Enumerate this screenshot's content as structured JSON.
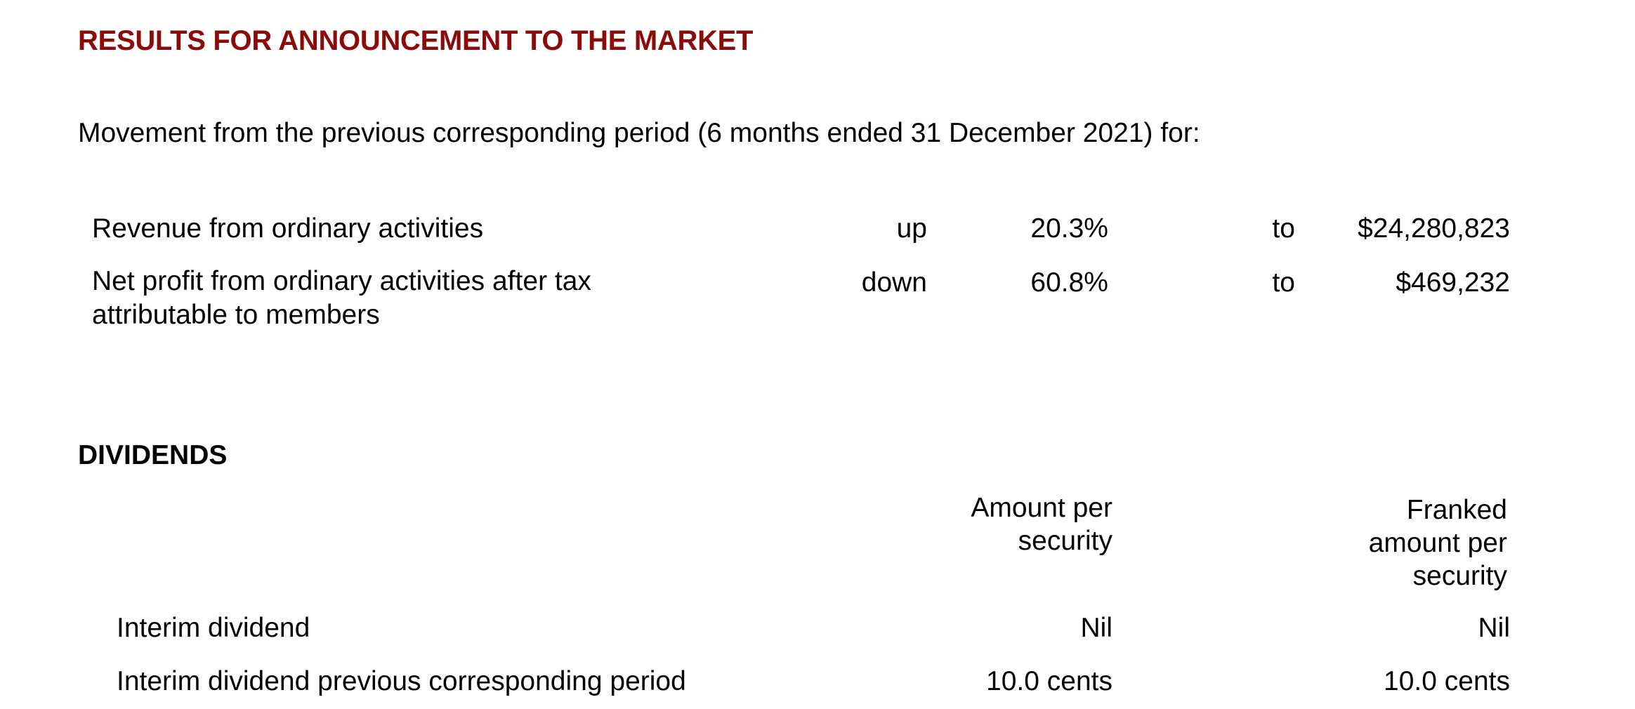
{
  "title": "RESULTS FOR ANNOUNCEMENT TO THE MARKET",
  "intro": "Movement from the previous corresponding period (6 months ended 31 December 2021) for:",
  "movements": [
    {
      "label": "Revenue from ordinary activities",
      "direction": "up",
      "percent": "20.3%",
      "to": "to",
      "amount": "$24,280,823"
    },
    {
      "label": "Net profit from ordinary activities after tax attributable to members",
      "direction": "down",
      "percent": "60.8%",
      "to": "to",
      "amount": "$469,232"
    }
  ],
  "dividends": {
    "heading": "DIVIDENDS",
    "col_amount": "Amount per security",
    "col_franked": "Franked amount per security",
    "rows": [
      {
        "label": "Interim dividend",
        "amount": "Nil",
        "franked": "Nil"
      },
      {
        "label": "Interim dividend previous corresponding period",
        "amount": "10.0 cents",
        "franked": "10.0 cents"
      }
    ]
  },
  "colors": {
    "title": "#8b0a0a",
    "text": "#000000",
    "background": "#ffffff"
  }
}
